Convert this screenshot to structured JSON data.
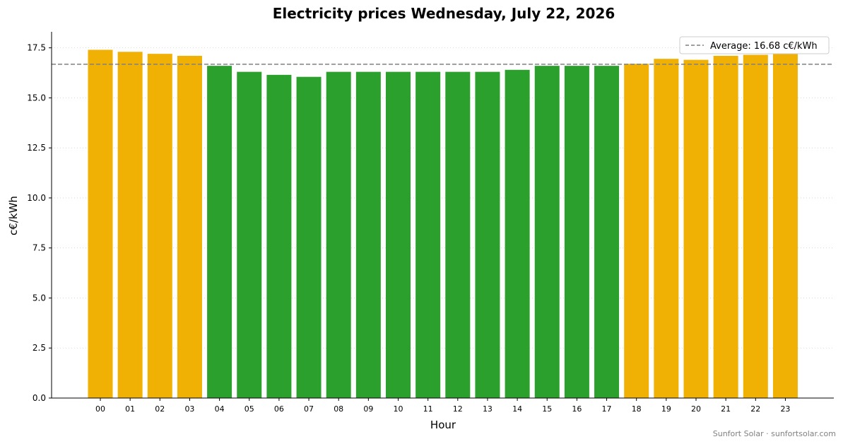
{
  "chart_data": {
    "type": "bar",
    "title": "Electricity prices Wednesday, July 22, 2026",
    "xlabel": "Hour",
    "ylabel": "c€/kWh",
    "ylim": [
      0,
      18.3
    ],
    "yticks": [
      "0.0",
      "2.5",
      "5.0",
      "7.5",
      "10.0",
      "12.5",
      "15.0",
      "17.5"
    ],
    "ytick_values": [
      0,
      2.5,
      5,
      7.5,
      10,
      12.5,
      15,
      17.5
    ],
    "categories": [
      "00",
      "01",
      "02",
      "03",
      "04",
      "05",
      "06",
      "07",
      "08",
      "09",
      "10",
      "11",
      "12",
      "13",
      "14",
      "15",
      "16",
      "17",
      "18",
      "19",
      "20",
      "21",
      "22",
      "23"
    ],
    "values": [
      17.4,
      17.3,
      17.2,
      17.1,
      16.6,
      16.3,
      16.15,
      16.05,
      16.3,
      16.3,
      16.3,
      16.3,
      16.3,
      16.3,
      16.4,
      16.6,
      16.6,
      16.6,
      16.7,
      16.95,
      16.9,
      17.1,
      17.15,
      17.2
    ],
    "bar_status": [
      "above",
      "above",
      "above",
      "above",
      "below",
      "below",
      "below",
      "below",
      "below",
      "below",
      "below",
      "below",
      "below",
      "below",
      "below",
      "below",
      "below",
      "below",
      "above",
      "above",
      "above",
      "above",
      "above",
      "above"
    ],
    "colors": {
      "above": "#f0b004",
      "below": "#2ca02c",
      "average_line": "#808080",
      "grid": "#d0d0d0"
    },
    "average": {
      "value": 16.68,
      "label": "Average: 16.68 c€/kWh",
      "style": "dashed"
    },
    "legend": {
      "placement": "top-right"
    },
    "grid": {
      "y": true,
      "x": false,
      "style": "dotted"
    }
  },
  "footer": {
    "credit": "Sunfort Solar · sunfortsolar.com"
  }
}
